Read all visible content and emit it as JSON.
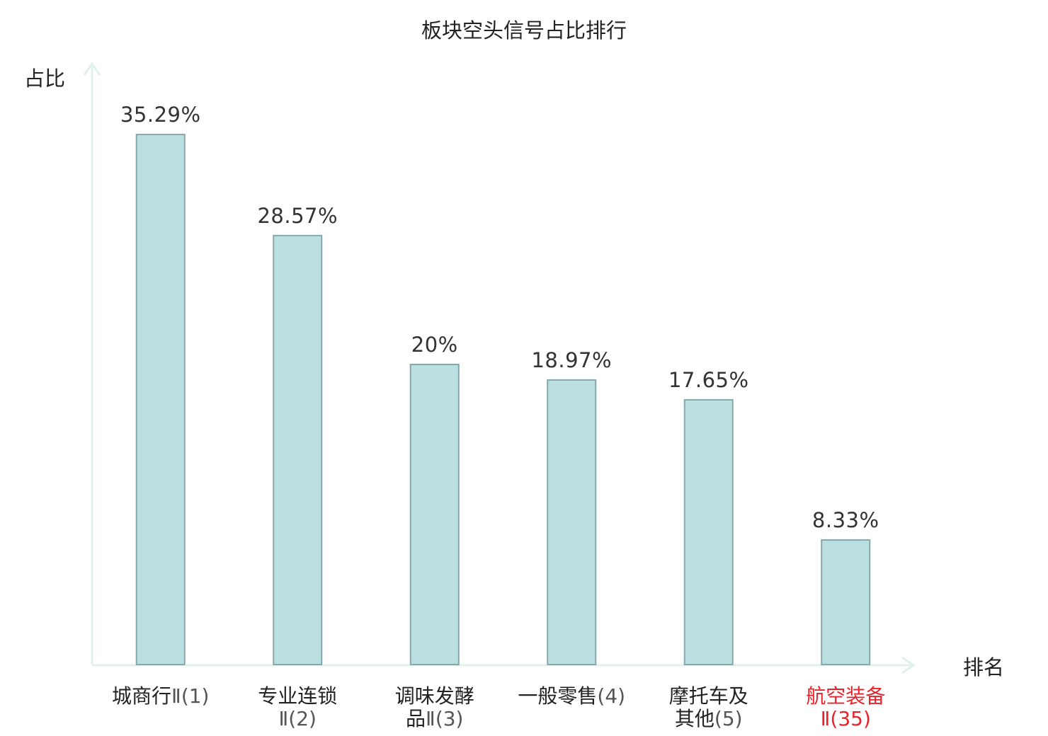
{
  "chart_data": {
    "type": "bar",
    "title": "板块空头信号占比排行",
    "ylabel": "占比",
    "xlabel": "排名",
    "ylim": [
      0,
      40
    ],
    "grid": false,
    "categories": [
      {
        "lines": [
          {
            "name": "城商行",
            "rank": "Ⅱ(1)"
          }
        ],
        "highlight": false
      },
      {
        "lines": [
          {
            "name": "专业连锁",
            "rank": ""
          },
          {
            "name": "",
            "rank": "Ⅱ(2)"
          }
        ],
        "highlight": false
      },
      {
        "lines": [
          {
            "name": "调味发酵",
            "rank": ""
          },
          {
            "name": "品",
            "rank": "Ⅱ(3)"
          }
        ],
        "highlight": false
      },
      {
        "lines": [
          {
            "name": "一般零售",
            "rank": "(4)"
          }
        ],
        "highlight": false
      },
      {
        "lines": [
          {
            "name": "摩托车及",
            "rank": ""
          },
          {
            "name": "其他",
            "rank": "(5)"
          }
        ],
        "highlight": false
      },
      {
        "lines": [
          {
            "name": "航空装备",
            "rank": ""
          },
          {
            "name": "",
            "rank": "Ⅱ(35)"
          }
        ],
        "highlight": true
      }
    ],
    "values": [
      35.29,
      28.57,
      20,
      18.97,
      17.65,
      8.33
    ],
    "value_labels": [
      "35.29%",
      "28.57%",
      "20%",
      "18.97%",
      "17.65%",
      "8.33%"
    ]
  },
  "colors": {
    "bar_fill": "#bce0e2",
    "bar_stroke": "#86a8aa",
    "axis": "#dff2ee",
    "text": "#222222",
    "value_text": "#333333",
    "rank_text": "#555555",
    "highlight": "#e8232a"
  }
}
